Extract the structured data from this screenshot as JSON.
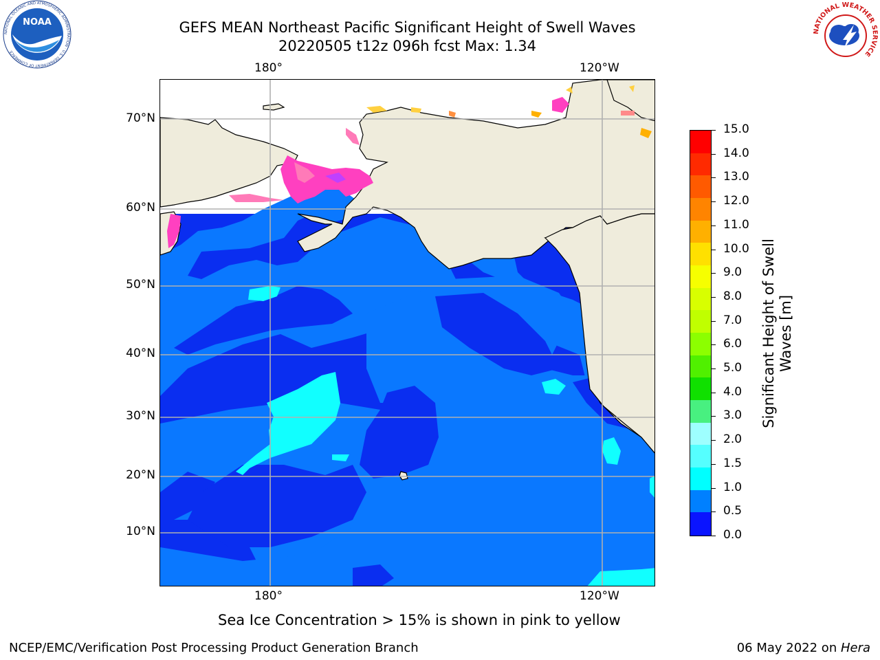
{
  "title": {
    "line1": "GEFS MEAN Northeast Pacific Significant Height of Swell Waves",
    "line2": "20220505 t12z 096h fcst   Max: 1.34"
  },
  "axes": {
    "top_lon": [
      "180°",
      "120°W"
    ],
    "bottom_lon": [
      "180°",
      "120°W"
    ],
    "left_lat": [
      "70°N",
      "60°N",
      "50°N",
      "40°N",
      "30°N",
      "20°N",
      "10°N"
    ]
  },
  "colorbar": {
    "title_line1": "Significant Height of Swell",
    "title_line2": "Waves [m]",
    "ticks": [
      "15.0",
      "14.0",
      "13.0",
      "12.0",
      "11.0",
      "10.0",
      "9.0",
      "8.0",
      "7.0",
      "6.0",
      "5.0",
      "4.0",
      "3.0",
      "2.0",
      "1.5",
      "1.0",
      "0.5",
      "0.0"
    ],
    "colors_top_to_bottom": [
      "#ff0000",
      "#ff2a00",
      "#ff5a00",
      "#ff8400",
      "#ffb000",
      "#ffe000",
      "#f6ff00",
      "#d8ff00",
      "#c0ff00",
      "#8cff00",
      "#50f000",
      "#10e000",
      "#48f080",
      "#9effff",
      "#55ffff",
      "#00ffff",
      "#0080ff",
      "#0a14ff"
    ]
  },
  "map_colors": {
    "ocean_deep": "#0a2ef0",
    "ocean_mid": "#0a78ff",
    "ocean_light": "#11ffff",
    "land": "#efecdc",
    "grid": "#b0b0b0",
    "ice": "#ff40c0"
  },
  "note": "Sea Ice Concentration > 15% is shown in pink to yellow",
  "footer": {
    "left": "NCEP/EMC/Verification Post Processing Product Generation Branch",
    "right_date": "06 May 2022 on ",
    "right_host": "Hera"
  },
  "logos": {
    "left": "NOAA",
    "left_ring": "NATIONAL OCEANIC AND ATMOSPHERIC ADMINISTRATION · U.S. DEPARTMENT OF COMMERCE",
    "right_ring": "NATIONAL WEATHER SERVICE"
  }
}
